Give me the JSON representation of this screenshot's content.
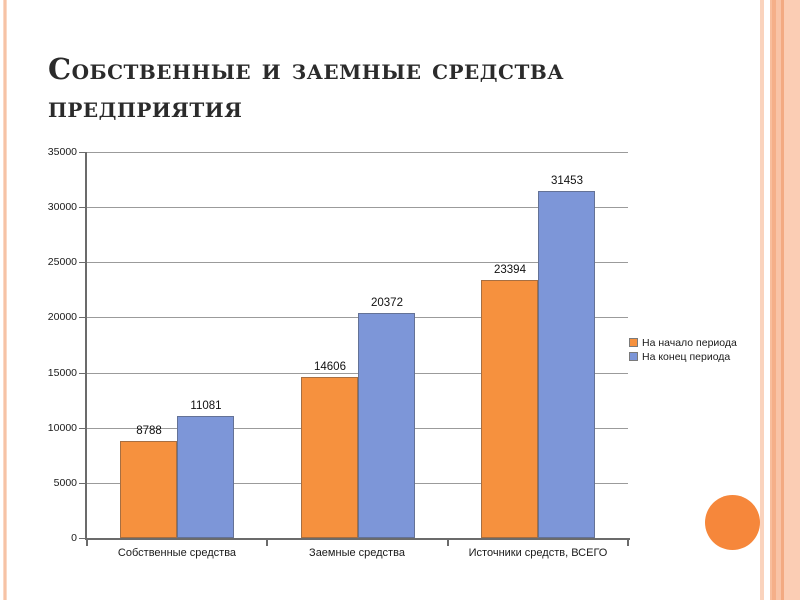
{
  "slide": {
    "title_line1": "Собственные и заемные средства",
    "title_line2": "предприятия"
  },
  "theme": {
    "circle_color": "#f6873b",
    "stripe_color": "#f6c3a6",
    "background": "#ffffff"
  },
  "chart_data": {
    "type": "bar",
    "title": "",
    "xlabel": "",
    "ylabel": "",
    "categories": [
      "Собственные средства",
      "Заемные средства",
      "Источники средств, ВСЕГО"
    ],
    "series": [
      {
        "name": "На начало периода",
        "color": "#f6913e",
        "values": [
          8788,
          14606,
          23394
        ]
      },
      {
        "name": "На конец периода",
        "color": "#7d96d8",
        "values": [
          11081,
          20372,
          31453
        ]
      }
    ],
    "ylim": [
      0,
      35000
    ],
    "yticks": [
      0,
      5000,
      10000,
      15000,
      20000,
      25000,
      30000,
      35000
    ],
    "grid": true,
    "data_labels": true,
    "legend_position": "right"
  }
}
